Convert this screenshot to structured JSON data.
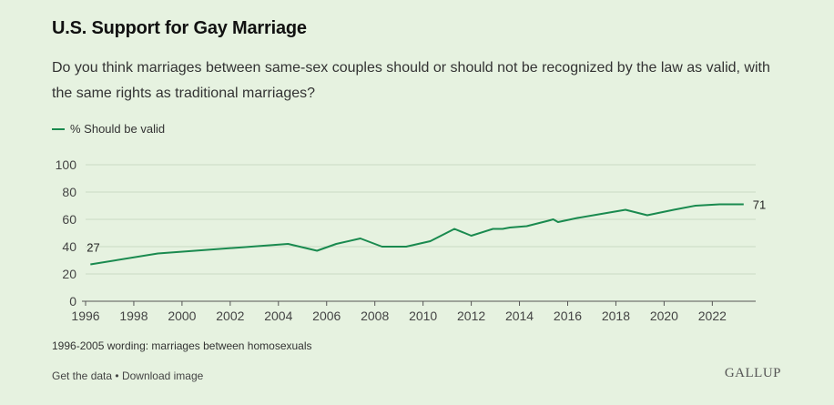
{
  "header": {
    "title": "U.S. Support for Gay Marriage",
    "subtitle": "Do you think marriages between same-sex couples should or should not be recognized by the law as valid, with the same rights as traditional marriages?"
  },
  "colors": {
    "series": "#1a8a4f",
    "grid": "#c9d9c3",
    "axis": "#555555",
    "background": "#e6f2e0"
  },
  "chart_data": {
    "type": "line",
    "title": "U.S. Support for Gay Marriage",
    "xlabel": "",
    "ylabel": "",
    "xlim": [
      1996,
      2023.8
    ],
    "ylim": [
      0,
      100
    ],
    "x_ticks": [
      1996,
      1998,
      2000,
      2002,
      2004,
      2006,
      2008,
      2010,
      2012,
      2014,
      2016,
      2018,
      2020,
      2022
    ],
    "y_ticks": [
      0,
      20,
      40,
      60,
      80,
      100
    ],
    "grid": true,
    "legend": "top-left",
    "series": [
      {
        "name": "% Should be valid",
        "x": [
          1996.2,
          1999.0,
          2004.4,
          2005.6,
          2006.4,
          2007.4,
          2008.3,
          2009.3,
          2010.3,
          2011.3,
          2012.0,
          2012.9,
          2013.3,
          2013.6,
          2014.3,
          2015.2,
          2015.4,
          2015.6,
          2016.4,
          2017.4,
          2018.4,
          2019.3,
          2020.4,
          2021.3,
          2022.3,
          2023.3
        ],
        "values": [
          27,
          35,
          42,
          37,
          42,
          46,
          40,
          40,
          44,
          53,
          48,
          53,
          53,
          54,
          55,
          59,
          60,
          58,
          61,
          64,
          67,
          63,
          67,
          70,
          71,
          71
        ]
      }
    ],
    "annotations": [
      {
        "label": "27",
        "x": 1996.2,
        "value": 27
      },
      {
        "label": "71",
        "x": 2023.3,
        "value": 71
      }
    ]
  },
  "legend": {
    "label": "% Should be valid"
  },
  "footnote": "1996-2005 wording: marriages between homosexuals",
  "links": {
    "get_data": "Get the data",
    "separator": "•",
    "download": "Download image"
  },
  "brand": "GALLUP"
}
